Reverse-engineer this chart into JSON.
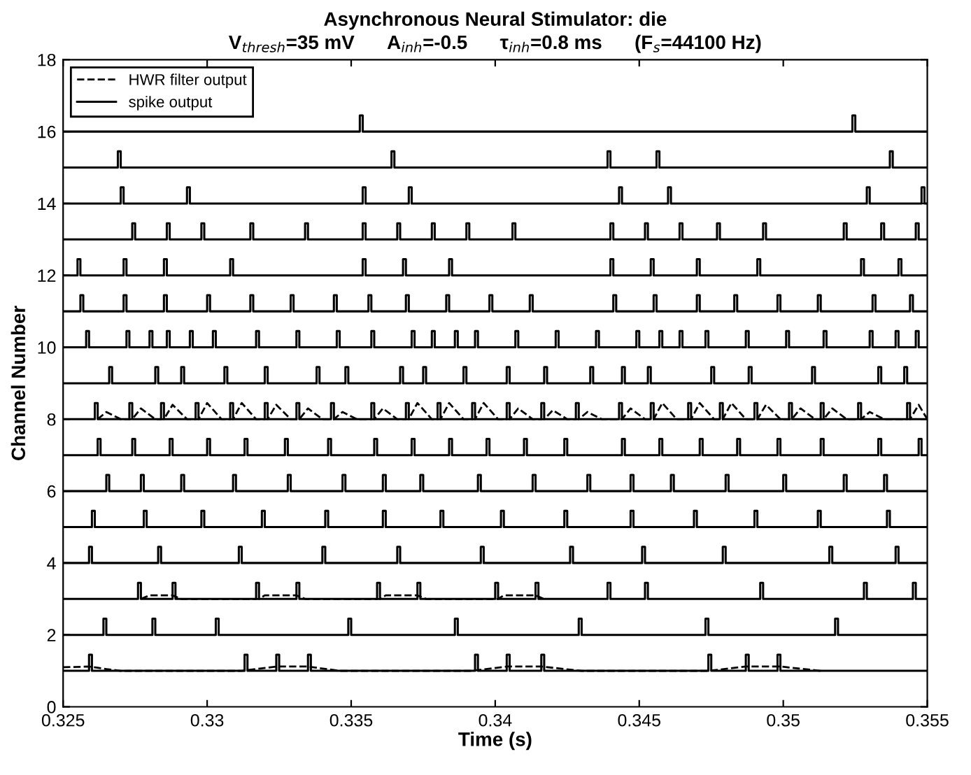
{
  "chart_data": {
    "type": "step",
    "title": "Asynchronous Neural Stimulator: die",
    "subtitle": "V$_{thresh}$=35 mV      A$_{inh}$=-0.5      τ$_{inh}$=0.8 ms      (F$_{s}$=44100 Hz)",
    "xlabel": "Time (s)",
    "ylabel": "Channel Number",
    "xlim": [
      0.325,
      0.355
    ],
    "xticks": [
      0.325,
      0.33,
      0.335,
      0.34,
      0.345,
      0.35,
      0.355
    ],
    "ylim": [
      0,
      18
    ],
    "yticks": [
      0,
      2,
      4,
      6,
      8,
      10,
      12,
      14,
      16,
      18
    ],
    "grid": false,
    "legend": "top left",
    "series": [
      {
        "name": "HWR filter output",
        "type": "line",
        "line_style": "dashed",
        "color": "#000000",
        "x": [
          0.325,
          0.3259,
          0.3265,
          0.327,
          0.3312,
          0.3324,
          0.3335,
          0.3346,
          0.3392,
          0.3404,
          0.3416,
          0.343,
          0.3474,
          0.3487,
          0.3499,
          0.3513
        ],
        "values": [
          1.1,
          1.12,
          1.05,
          1.0,
          1.0,
          1.12,
          1.12,
          1.0,
          1.0,
          1.12,
          1.12,
          1.0,
          1.0,
          1.12,
          1.12,
          1.0
        ]
      },
      {
        "type": "line",
        "line_style": "dashed",
        "color": "#000000",
        "x": [
          0.3277,
          0.328,
          0.3288,
          0.3291,
          0.3318,
          0.332,
          0.3331,
          0.3334,
          0.336,
          0.3362,
          0.3373,
          0.3376,
          0.3401,
          0.3403,
          0.3414,
          0.3417
        ],
        "values": [
          3,
          3.1,
          3.1,
          3,
          3,
          3.1,
          3.1,
          3,
          3,
          3.1,
          3.1,
          3,
          3,
          3.1,
          3.1,
          3
        ]
      },
      {
        "type": "line",
        "line_style": "dashed",
        "color": "#000000",
        "x": [
          0.3262,
          0.3265,
          0.327,
          0.3274,
          0.3277,
          0.3282,
          0.3285,
          0.3288,
          0.3293,
          0.3297,
          0.33,
          0.3305,
          0.3309,
          0.3312,
          0.3317,
          0.3321,
          0.3324,
          0.3329,
          0.3332,
          0.3335,
          0.334,
          0.3344,
          0.3347,
          0.3352,
          0.3358,
          0.3361,
          0.3366,
          0.337,
          0.3373,
          0.3378,
          0.3381,
          0.3384,
          0.3389,
          0.3393,
          0.3396,
          0.3401,
          0.3405,
          0.3408,
          0.3413,
          0.3417,
          0.342,
          0.3425,
          0.3429,
          0.3432,
          0.3437,
          0.3444,
          0.3447,
          0.3452,
          0.3455,
          0.3458,
          0.3463,
          0.3468,
          0.3471,
          0.3476,
          0.3479,
          0.3482,
          0.3487,
          0.3491,
          0.3494,
          0.3499,
          0.3503,
          0.3506,
          0.3511,
          0.3514,
          0.3517,
          0.3522,
          0.3527,
          0.353,
          0.3535,
          0.3544,
          0.3547,
          0.355
        ],
        "values": [
          8,
          8.2,
          8,
          8,
          8.3,
          8,
          8,
          8.4,
          8,
          8,
          8.45,
          8,
          8,
          8.45,
          8,
          8,
          8.4,
          8,
          8,
          8.3,
          8,
          8,
          8.2,
          8,
          8,
          8.3,
          8,
          8,
          8.45,
          8,
          8,
          8.45,
          8,
          8,
          8.45,
          8,
          8,
          8.3,
          8,
          8,
          8.25,
          8,
          8,
          8.2,
          8,
          8,
          8.3,
          8,
          8,
          8.45,
          8,
          8,
          8.45,
          8,
          8,
          8.45,
          8,
          8,
          8.4,
          8,
          8,
          8.3,
          8,
          8,
          8.3,
          8,
          8,
          8.2,
          8,
          8,
          8.4,
          8
        ]
      },
      {
        "name": "spike output",
        "color": "#000000",
        "x": [
          0.325,
          0.3259,
          0.326,
          0.3313,
          0.3314,
          0.3324,
          0.3325,
          0.3335,
          0.3336,
          0.3393,
          0.3394,
          0.3404,
          0.3405,
          0.3416,
          0.3417,
          0.3474,
          0.3475,
          0.3487,
          0.3488,
          0.3498,
          0.3499,
          0.355
        ],
        "values": [
          1,
          1.45,
          1,
          1.45,
          1,
          1.45,
          1,
          1.45,
          1,
          1.45,
          1,
          1.45,
          1,
          1.45,
          1,
          1.45,
          1,
          1.45,
          1,
          1.45,
          1,
          1
        ]
      },
      {
        "color": "#000000",
        "x": [
          0.325,
          0.3264,
          0.3265,
          0.3281,
          0.3282,
          0.3303,
          0.3304,
          0.3349,
          0.335,
          0.3386,
          0.3387,
          0.3429,
          0.343,
          0.3473,
          0.3474,
          0.3518,
          0.3519,
          0.355
        ],
        "values": [
          2,
          2.45,
          2,
          2.45,
          2,
          2.45,
          2,
          2.45,
          2,
          2.45,
          2,
          2.45,
          2,
          2.45,
          2,
          2.45,
          2,
          2
        ]
      },
      {
        "color": "#000000",
        "x": [
          0.325,
          0.3276,
          0.3277,
          0.3288,
          0.3289,
          0.3317,
          0.3318,
          0.3331,
          0.3332,
          0.3359,
          0.336,
          0.3373,
          0.3374,
          0.34,
          0.3401,
          0.3414,
          0.3415,
          0.3439,
          0.344,
          0.3452,
          0.3453,
          0.3492,
          0.3493,
          0.3528,
          0.3529,
          0.3545,
          0.3546,
          0.355
        ],
        "values": [
          3,
          3.45,
          3,
          3.45,
          3,
          3.45,
          3,
          3.45,
          3,
          3.45,
          3,
          3.45,
          3,
          3.45,
          3,
          3.45,
          3,
          3.45,
          3,
          3.45,
          3,
          3.45,
          3,
          3.45,
          3,
          3.45,
          3,
          3
        ]
      },
      {
        "color": "#000000",
        "x": [
          0.325,
          0.3259,
          0.326,
          0.3283,
          0.3284,
          0.3311,
          0.3312,
          0.334,
          0.3341,
          0.3366,
          0.3367,
          0.3395,
          0.3396,
          0.3426,
          0.3427,
          0.3451,
          0.3452,
          0.3479,
          0.348,
          0.3516,
          0.3517,
          0.3539,
          0.354,
          0.355
        ],
        "values": [
          4,
          4.45,
          4,
          4.45,
          4,
          4.45,
          4,
          4.45,
          4,
          4.45,
          4,
          4.45,
          4,
          4.45,
          4,
          4.45,
          4,
          4.45,
          4,
          4.45,
          4,
          4.45,
          4,
          4
        ]
      },
      {
        "color": "#000000",
        "x": [
          0.325,
          0.326,
          0.3261,
          0.3278,
          0.3279,
          0.3298,
          0.3299,
          0.3319,
          0.332,
          0.3341,
          0.3342,
          0.3361,
          0.3362,
          0.3381,
          0.3382,
          0.3402,
          0.3403,
          0.3424,
          0.3425,
          0.3447,
          0.3448,
          0.3469,
          0.347,
          0.349,
          0.3491,
          0.3512,
          0.3513,
          0.3536,
          0.3537,
          0.355
        ],
        "values": [
          5,
          5.45,
          5,
          5.45,
          5,
          5.45,
          5,
          5.45,
          5,
          5.45,
          5,
          5.45,
          5,
          5.45,
          5,
          5.45,
          5,
          5.45,
          5,
          5.45,
          5,
          5.45,
          5,
          5.45,
          5,
          5.45,
          5,
          5.45,
          5,
          5
        ]
      },
      {
        "color": "#000000",
        "x": [
          0.325,
          0.3265,
          0.3266,
          0.3277,
          0.3278,
          0.3291,
          0.3292,
          0.3309,
          0.331,
          0.3328,
          0.3329,
          0.3347,
          0.3348,
          0.3361,
          0.3362,
          0.3374,
          0.3375,
          0.3394,
          0.3395,
          0.3413,
          0.3414,
          0.3432,
          0.3433,
          0.3447,
          0.3448,
          0.3461,
          0.3462,
          0.348,
          0.3481,
          0.35,
          0.3501,
          0.3521,
          0.3522,
          0.3535,
          0.3536,
          0.355
        ],
        "values": [
          6,
          6.45,
          6,
          6.45,
          6,
          6.45,
          6,
          6.45,
          6,
          6.45,
          6,
          6.45,
          6,
          6.45,
          6,
          6.45,
          6,
          6.45,
          6,
          6.45,
          6,
          6.45,
          6,
          6.45,
          6,
          6.45,
          6,
          6.45,
          6,
          6.45,
          6,
          6.45,
          6,
          6.45,
          6,
          6
        ]
      },
      {
        "color": "#000000",
        "x": [
          0.325,
          0.3262,
          0.3263,
          0.3274,
          0.3275,
          0.3287,
          0.3288,
          0.33,
          0.3301,
          0.3313,
          0.3314,
          0.3327,
          0.3328,
          0.3342,
          0.3343,
          0.3358,
          0.3359,
          0.3371,
          0.3372,
          0.3384,
          0.3385,
          0.3397,
          0.3398,
          0.341,
          0.3411,
          0.3424,
          0.3425,
          0.3444,
          0.3445,
          0.3457,
          0.3458,
          0.3471,
          0.3472,
          0.3484,
          0.3485,
          0.3498,
          0.3499,
          0.3513,
          0.3514,
          0.3533,
          0.3534,
          0.3547,
          0.3548,
          0.355
        ],
        "values": [
          7,
          7.45,
          7,
          7.45,
          7,
          7.45,
          7,
          7.45,
          7,
          7.45,
          7,
          7.45,
          7,
          7.45,
          7,
          7.45,
          7,
          7.45,
          7,
          7.45,
          7,
          7.45,
          7,
          7.45,
          7,
          7.45,
          7,
          7.45,
          7,
          7.45,
          7,
          7.45,
          7,
          7.45,
          7,
          7.45,
          7,
          7.45,
          7,
          7.45,
          7,
          7.45,
          7,
          7
        ]
      },
      {
        "color": "#000000",
        "x": [
          0.325,
          0.3261,
          0.3262,
          0.3273,
          0.3274,
          0.3284,
          0.3285,
          0.3296,
          0.3297,
          0.3308,
          0.3309,
          0.332,
          0.3321,
          0.3331,
          0.3332,
          0.3343,
          0.3344,
          0.3357,
          0.3358,
          0.3369,
          0.337,
          0.338,
          0.3381,
          0.3392,
          0.3393,
          0.3404,
          0.3405,
          0.3416,
          0.3417,
          0.3428,
          0.3429,
          0.3443,
          0.3444,
          0.3454,
          0.3455,
          0.3467,
          0.3468,
          0.3478,
          0.3479,
          0.349,
          0.3491,
          0.3502,
          0.3503,
          0.3513,
          0.3514,
          0.3526,
          0.3527,
          0.3543,
          0.3544,
          0.355
        ],
        "values": [
          8,
          8.45,
          8,
          8.45,
          8,
          8.45,
          8,
          8.45,
          8,
          8.45,
          8,
          8.45,
          8,
          8.45,
          8,
          8.45,
          8,
          8.45,
          8,
          8.45,
          8,
          8.45,
          8,
          8.45,
          8,
          8.45,
          8,
          8.45,
          8,
          8.45,
          8,
          8.45,
          8,
          8.45,
          8,
          8.45,
          8,
          8.45,
          8,
          8.45,
          8,
          8.45,
          8,
          8.45,
          8,
          8.45,
          8,
          8.45,
          8,
          8
        ]
      },
      {
        "color": "#000000",
        "x": [
          0.325,
          0.3266,
          0.3267,
          0.3282,
          0.3283,
          0.3291,
          0.3292,
          0.3306,
          0.3307,
          0.332,
          0.3321,
          0.3338,
          0.3339,
          0.3348,
          0.3349,
          0.3367,
          0.3368,
          0.3375,
          0.3376,
          0.3389,
          0.339,
          0.3404,
          0.3405,
          0.3417,
          0.3418,
          0.3433,
          0.3434,
          0.3444,
          0.3445,
          0.3453,
          0.3454,
          0.3475,
          0.3476,
          0.3488,
          0.3489,
          0.351,
          0.3511,
          0.3533,
          0.3534,
          0.3542,
          0.3543,
          0.355
        ],
        "values": [
          9,
          9.45,
          9,
          9.45,
          9,
          9.45,
          9,
          9.45,
          9,
          9.45,
          9,
          9.45,
          9,
          9.45,
          9,
          9.45,
          9,
          9.45,
          9,
          9.45,
          9,
          9.45,
          9,
          9.45,
          9,
          9.45,
          9,
          9.45,
          9,
          9.45,
          9,
          9.45,
          9,
          9.45,
          9,
          9.45,
          9,
          9.45,
          9,
          9.45,
          9,
          9
        ]
      },
      {
        "color": "#000000",
        "x": [
          0.325,
          0.3258,
          0.3259,
          0.3272,
          0.3273,
          0.328,
          0.3281,
          0.3286,
          0.3287,
          0.3294,
          0.3295,
          0.3302,
          0.3303,
          0.3317,
          0.3318,
          0.3331,
          0.3332,
          0.3345,
          0.3346,
          0.3357,
          0.3358,
          0.3371,
          0.3372,
          0.3378,
          0.3379,
          0.3386,
          0.3387,
          0.3393,
          0.3394,
          0.3407,
          0.3408,
          0.3421,
          0.3422,
          0.3435,
          0.3436,
          0.3449,
          0.345,
          0.3457,
          0.3458,
          0.3464,
          0.3465,
          0.3473,
          0.3474,
          0.3487,
          0.3488,
          0.3501,
          0.3502,
          0.3514,
          0.3515,
          0.353,
          0.3531,
          0.3539,
          0.354,
          0.3546,
          0.3547,
          0.355
        ],
        "values": [
          10,
          10.45,
          10,
          10.45,
          10,
          10.45,
          10,
          10.45,
          10,
          10.45,
          10,
          10.45,
          10,
          10.45,
          10,
          10.45,
          10,
          10.45,
          10,
          10.45,
          10,
          10.45,
          10,
          10.45,
          10,
          10.45,
          10,
          10.45,
          10,
          10.45,
          10,
          10.45,
          10,
          10.45,
          10,
          10.45,
          10,
          10.45,
          10,
          10.45,
          10,
          10.45,
          10,
          10.45,
          10,
          10.45,
          10,
          10.45,
          10,
          10.45,
          10,
          10.45,
          10,
          10.45,
          10,
          10
        ]
      },
      {
        "color": "#000000",
        "x": [
          0.325,
          0.3256,
          0.3257,
          0.3271,
          0.3272,
          0.3285,
          0.3286,
          0.33,
          0.3301,
          0.3315,
          0.3316,
          0.3329,
          0.333,
          0.3344,
          0.3345,
          0.3356,
          0.3357,
          0.3369,
          0.337,
          0.3383,
          0.3384,
          0.3398,
          0.3399,
          0.3412,
          0.3413,
          0.3441,
          0.3442,
          0.3455,
          0.3456,
          0.347,
          0.3471,
          0.3483,
          0.3484,
          0.3498,
          0.3499,
          0.3512,
          0.3513,
          0.3531,
          0.3532,
          0.3544,
          0.3545,
          0.355
        ],
        "values": [
          11,
          11.45,
          11,
          11.45,
          11,
          11.45,
          11,
          11.45,
          11,
          11.45,
          11,
          11.45,
          11,
          11.45,
          11,
          11.45,
          11,
          11.45,
          11,
          11.45,
          11,
          11.45,
          11,
          11.45,
          11,
          11.45,
          11,
          11.45,
          11,
          11.45,
          11,
          11.45,
          11,
          11.45,
          11,
          11.45,
          11,
          11.45,
          11,
          11.45,
          11,
          11
        ]
      },
      {
        "color": "#000000",
        "x": [
          0.325,
          0.3255,
          0.3256,
          0.3271,
          0.3272,
          0.3285,
          0.3286,
          0.3308,
          0.3309,
          0.3354,
          0.3355,
          0.3368,
          0.3369,
          0.3384,
          0.3385,
          0.344,
          0.3441,
          0.3454,
          0.3455,
          0.347,
          0.3471,
          0.3491,
          0.3492,
          0.3527,
          0.3528,
          0.354,
          0.3541,
          0.355
        ],
        "values": [
          12,
          12.45,
          12,
          12.45,
          12,
          12.45,
          12,
          12.45,
          12,
          12.45,
          12,
          12.45,
          12,
          12.45,
          12,
          12.45,
          12,
          12.45,
          12,
          12.45,
          12,
          12.45,
          12,
          12.45,
          12,
          12.45,
          12,
          12
        ]
      },
      {
        "color": "#000000",
        "x": [
          0.325,
          0.3274,
          0.3275,
          0.3286,
          0.3287,
          0.3298,
          0.3299,
          0.3315,
          0.3316,
          0.3334,
          0.3335,
          0.3354,
          0.3355,
          0.3366,
          0.3367,
          0.3378,
          0.3379,
          0.339,
          0.3391,
          0.3406,
          0.3407,
          0.344,
          0.3441,
          0.3452,
          0.3453,
          0.3464,
          0.3465,
          0.3477,
          0.3478,
          0.3493,
          0.3494,
          0.3521,
          0.3522,
          0.3534,
          0.3535,
          0.3546,
          0.3547,
          0.355
        ],
        "values": [
          13,
          13.45,
          13,
          13.45,
          13,
          13.45,
          13,
          13.45,
          13,
          13.45,
          13,
          13.45,
          13,
          13.45,
          13,
          13.45,
          13,
          13.45,
          13,
          13.45,
          13,
          13.45,
          13,
          13.45,
          13,
          13.45,
          13,
          13.45,
          13,
          13.45,
          13,
          13.45,
          13,
          13.45,
          13,
          13.45,
          13,
          13
        ]
      },
      {
        "color": "#000000",
        "x": [
          0.325,
          0.327,
          0.3271,
          0.3293,
          0.3294,
          0.3354,
          0.3355,
          0.337,
          0.3371,
          0.3443,
          0.3444,
          0.346,
          0.3461,
          0.3529,
          0.353,
          0.3548,
          0.3549,
          0.355
        ],
        "values": [
          14,
          14.45,
          14,
          14.45,
          14,
          14.45,
          14,
          14.45,
          14,
          14.45,
          14,
          14.45,
          14,
          14.45,
          14,
          14.45,
          14,
          14
        ]
      },
      {
        "color": "#000000",
        "x": [
          0.325,
          0.3269,
          0.327,
          0.3364,
          0.3365,
          0.3439,
          0.344,
          0.3456,
          0.3457,
          0.3537,
          0.3538,
          0.355
        ],
        "values": [
          15,
          15.45,
          15,
          15.45,
          15,
          15.45,
          15,
          15.45,
          15,
          15.45,
          15,
          15
        ]
      },
      {
        "color": "#000000",
        "x": [
          0.325,
          0.3353,
          0.3354,
          0.3524,
          0.3525,
          0.355
        ],
        "values": [
          16,
          16.45,
          16,
          16.45,
          16,
          16
        ]
      }
    ]
  }
}
